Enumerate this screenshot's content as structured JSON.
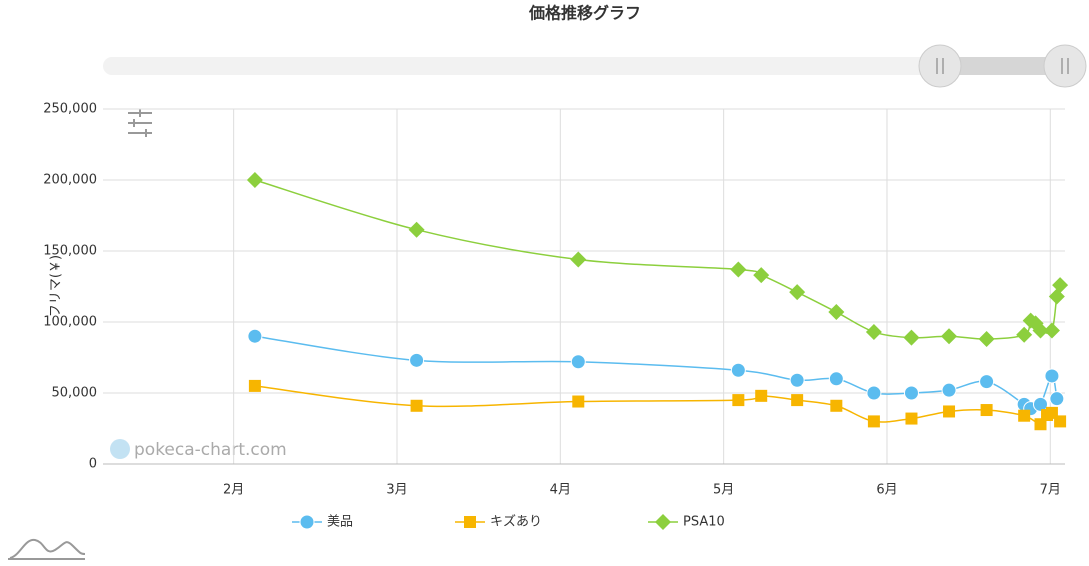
{
  "chart_data": {
    "type": "line",
    "title": "価格推移グラフ",
    "y_label": "フリマ(￥)",
    "watermark": "pokeca-chart.com",
    "xlim": [
      1.2,
      7.09
    ],
    "xticks": [
      {
        "value": 2,
        "label": "2月"
      },
      {
        "value": 3,
        "label": "3月"
      },
      {
        "value": 4,
        "label": "4月"
      },
      {
        "value": 5,
        "label": "5月"
      },
      {
        "value": 6,
        "label": "6月"
      },
      {
        "value": 7,
        "label": "7月"
      }
    ],
    "ylim": [
      0,
      250000
    ],
    "yticks": [
      0,
      {
        "value": 50000,
        "label": "50,000"
      },
      {
        "value": 100000,
        "label": "100,000"
      },
      {
        "value": 150000,
        "label": "150,000"
      },
      {
        "value": 200000,
        "label": "200,000"
      },
      {
        "value": 250000,
        "label": "250,000"
      }
    ],
    "grid": true,
    "legend": "bottom",
    "series": [
      {
        "name": "美品",
        "color": "#5bbcef",
        "marker": "circle",
        "x": [
          2.13,
          3.12,
          4.11,
          5.09,
          5.45,
          5.69,
          5.92,
          6.15,
          6.38,
          6.61,
          6.84,
          6.88,
          6.94,
          7.01,
          7.04
        ],
        "values": [
          90000,
          73000,
          72000,
          66000,
          59000,
          60000,
          50000,
          50000,
          52000,
          58000,
          42000,
          39000,
          42000,
          62000,
          46000
        ]
      },
      {
        "name": "キズあり",
        "color": "#f7b500",
        "marker": "square",
        "x": [
          2.13,
          3.12,
          4.11,
          5.09,
          5.23,
          5.45,
          5.69,
          5.92,
          6.15,
          6.38,
          6.61,
          6.84,
          6.94,
          6.98,
          7.01,
          7.06
        ],
        "values": [
          55000,
          41000,
          44000,
          45000,
          48000,
          45000,
          41000,
          30000,
          32000,
          37000,
          38000,
          34000,
          28000,
          34500,
          36000,
          30000
        ]
      },
      {
        "name": "PSA10",
        "color": "#8ccf3d",
        "marker": "diamond",
        "x": [
          2.13,
          3.12,
          4.11,
          5.09,
          5.23,
          5.45,
          5.69,
          5.92,
          6.15,
          6.38,
          6.61,
          6.84,
          6.88,
          6.91,
          6.94,
          7.01,
          7.04,
          7.06
        ],
        "values": [
          200000,
          165000,
          144000,
          137000,
          133000,
          121000,
          107000,
          93000,
          89000,
          90000,
          88000,
          91000,
          101000,
          99000,
          94000,
          94000,
          118000,
          126000
        ]
      }
    ]
  }
}
